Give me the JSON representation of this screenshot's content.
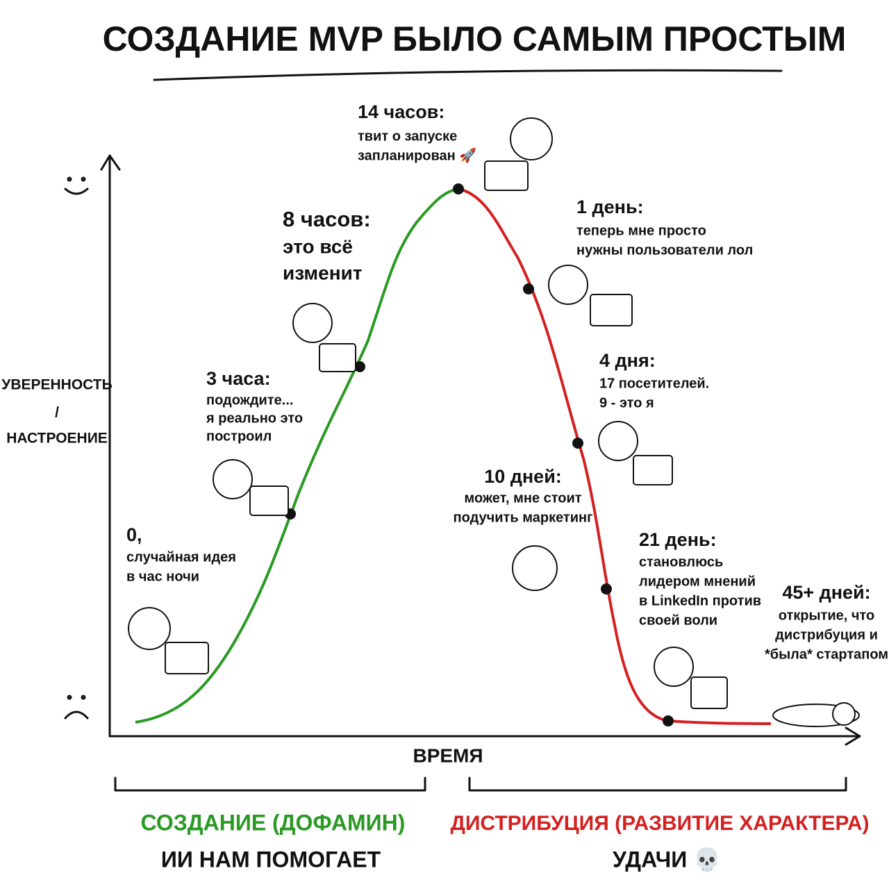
{
  "title": "СОЗДАНИЕ MVP БЫЛО САМЫМ ПРОСТЫМ",
  "y_label": [
    "УВЕРЕННОСТЬ",
    "/",
    "НАСТРОЕНИЕ"
  ],
  "x_label": "ВРЕМЯ",
  "milestones": [
    {
      "time": "0,",
      "text": [
        "случайная идея",
        "в час ночи"
      ]
    },
    {
      "time": "3 часа:",
      "text": [
        "подождите...",
        "я реально это",
        "построил"
      ]
    },
    {
      "time": "8 часов:",
      "text": [
        "это всё",
        "изменит"
      ]
    },
    {
      "time": "14 часов:",
      "text": [
        "твит о запуске",
        "запланирован 🚀"
      ]
    },
    {
      "time": "1 день:",
      "text": [
        "теперь мне просто",
        "нужны пользователи лол"
      ]
    },
    {
      "time": "4 дня:",
      "text": [
        "17 посетителей.",
        "9 - это я"
      ]
    },
    {
      "time": "10 дней:",
      "text": [
        "может, мне стоит",
        "подучить маркетинг"
      ]
    },
    {
      "time": "21 день:",
      "text": [
        "становлюсь",
        "лидером мнений",
        "в LinkedIn против",
        "своей воли"
      ]
    },
    {
      "time": "45+ дней:",
      "text": [
        "открытие, что",
        "дистрибуция и",
        "*была* стартапом"
      ]
    }
  ],
  "phases": [
    {
      "title": "СОЗДАНИЕ (ДОФАМИН)",
      "subtitle": "ИИ НАМ ПОМОГАЕТ"
    },
    {
      "title": "ДИСТРИБУЦИЯ (РАЗВИТИЕ ХАРАКТЕРА)",
      "subtitle": "УДАЧИ 💀"
    }
  ]
}
